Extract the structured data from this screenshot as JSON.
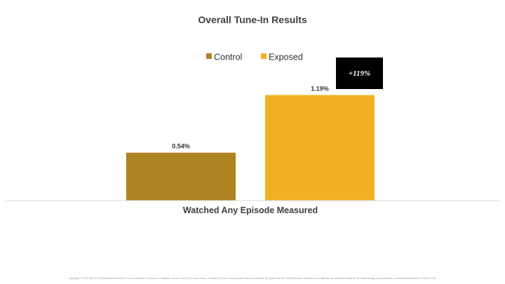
{
  "chart_data": {
    "type": "bar",
    "title": "Overall Tune-In Results",
    "categories": [
      "Watched Any Episode Measured"
    ],
    "series": [
      {
        "name": "Control",
        "values": [
          0.54
        ],
        "color": "#B08321",
        "data_label": "0.54%"
      },
      {
        "name": "Exposed",
        "values": [
          1.19
        ],
        "color": "#F2B124",
        "data_label": "1.19%"
      }
    ],
    "ylim": [
      0,
      1.55
    ],
    "unit": "%",
    "grid": false,
    "legend_position": "top-center",
    "annotation": {
      "text": "+119%",
      "background": "#000000",
      "text_color": "#FFFFFF"
    }
  },
  "footer": {
    "copyright": "Copyright © 2021 iSpot.tv. Confidential Information. Do not distribute, reproduce or disclose outside of any for to any means, in whole or in part, without prior written permission. All rights reserved. All information contained, and data are as estimated based on the methodology and proprietary, confidential information of iSpot.tv Inc."
  }
}
